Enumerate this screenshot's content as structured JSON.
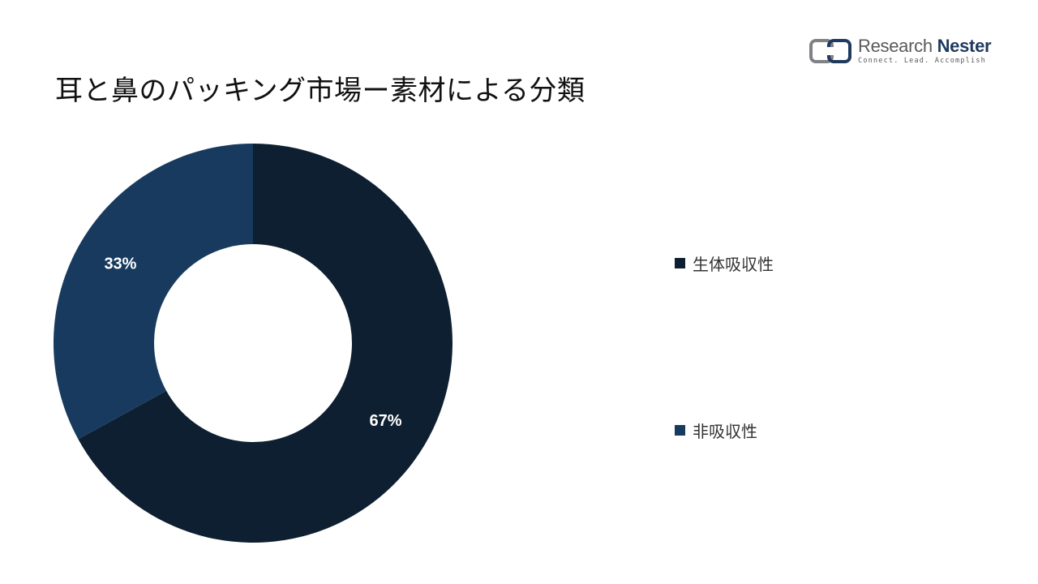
{
  "header": {
    "title": "耳と鼻のパッキング市場ー素材による分類"
  },
  "logo": {
    "name_part1": "Research",
    "name_part2": "Nester",
    "tagline": "Connect. Lead. Accomplish"
  },
  "colors": {
    "series1": "#0d1f30",
    "series2": "#173a5e",
    "background": "#ffffff"
  },
  "chart_data": {
    "type": "pie",
    "title": "耳と鼻のパッキング市場ー素材による分類",
    "categories": [
      "生体吸収性",
      "非吸収性"
    ],
    "values": [
      67,
      33
    ],
    "unit": "%",
    "data_labels": [
      "67%",
      "33%"
    ],
    "style": "donut",
    "legend_position": "right"
  }
}
